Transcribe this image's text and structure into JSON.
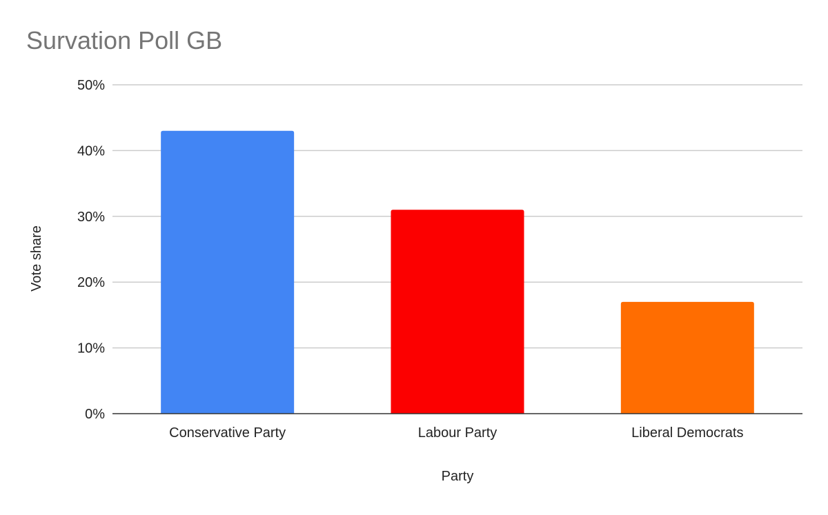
{
  "chart_data": {
    "type": "bar",
    "title": "Survation Poll GB",
    "xlabel": "Party",
    "ylabel": "Vote share",
    "categories": [
      "Conservative Party",
      "Labour Party",
      "Liberal Democrats"
    ],
    "values": [
      43,
      31,
      17
    ],
    "value_unit": "%",
    "bar_colors": [
      "#4285f4",
      "#fc0000",
      "#ff6d01"
    ],
    "ylim": [
      0,
      50
    ],
    "yticks": [
      0,
      10,
      20,
      30,
      40,
      50
    ],
    "ytick_labels": [
      "0%",
      "10%",
      "20%",
      "30%",
      "40%",
      "50%"
    ],
    "grid": true,
    "legend": "none"
  },
  "colors": {
    "title": "#757575",
    "text": "#222222",
    "grid": "#cccccc",
    "axis": "#333333",
    "background": "#ffffff"
  }
}
